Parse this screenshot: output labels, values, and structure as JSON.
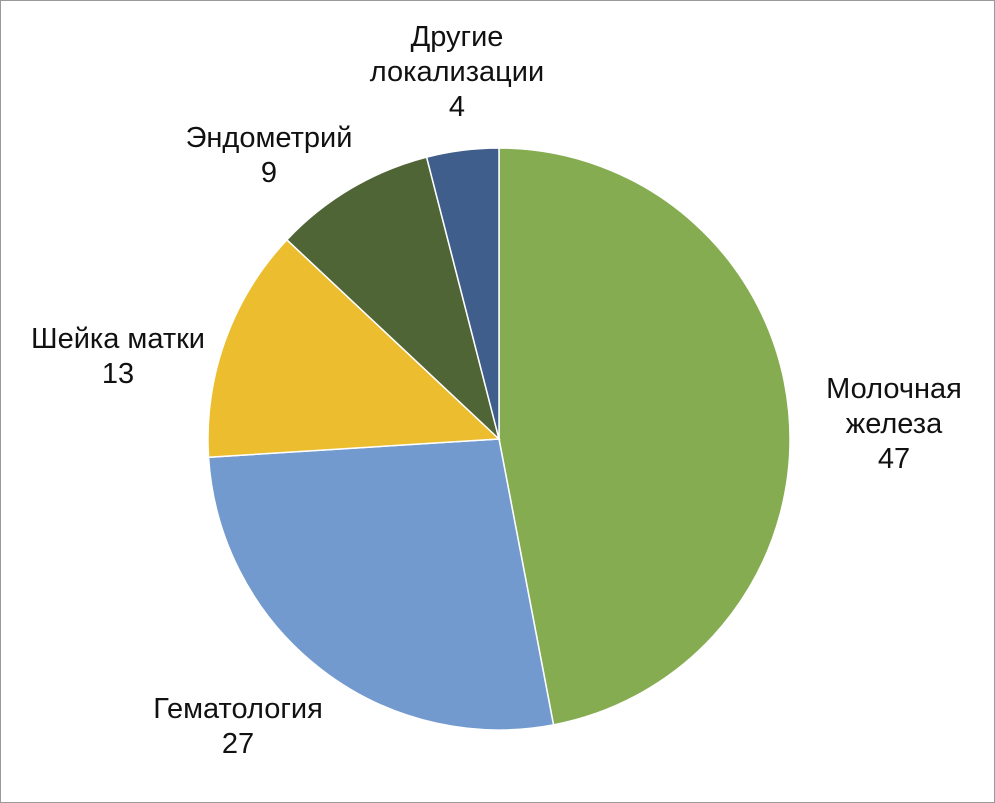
{
  "chart_data": {
    "type": "pie",
    "slices": [
      {
        "label_lines": [
          "Молочная",
          "железа"
        ],
        "value": 47,
        "value_label": "47",
        "color": "#86AC52"
      },
      {
        "label_lines": [
          "Гематология"
        ],
        "value": 27,
        "value_label": "27",
        "color": "#729ACF"
      },
      {
        "label_lines": [
          "Шейка матки"
        ],
        "value": 13,
        "value_label": "13",
        "color": "#EBBD2F"
      },
      {
        "label_lines": [
          "Эндометрий"
        ],
        "value": 9,
        "value_label": "9",
        "color": "#506535"
      },
      {
        "label_lines": [
          "Другие",
          "локализации"
        ],
        "value": 4,
        "value_label": "4",
        "color": "#3F5E8C"
      }
    ],
    "start_angle": "12 o'clock",
    "direction": "clockwise",
    "legend": "none",
    "data_labels": "outside, category name and value"
  }
}
